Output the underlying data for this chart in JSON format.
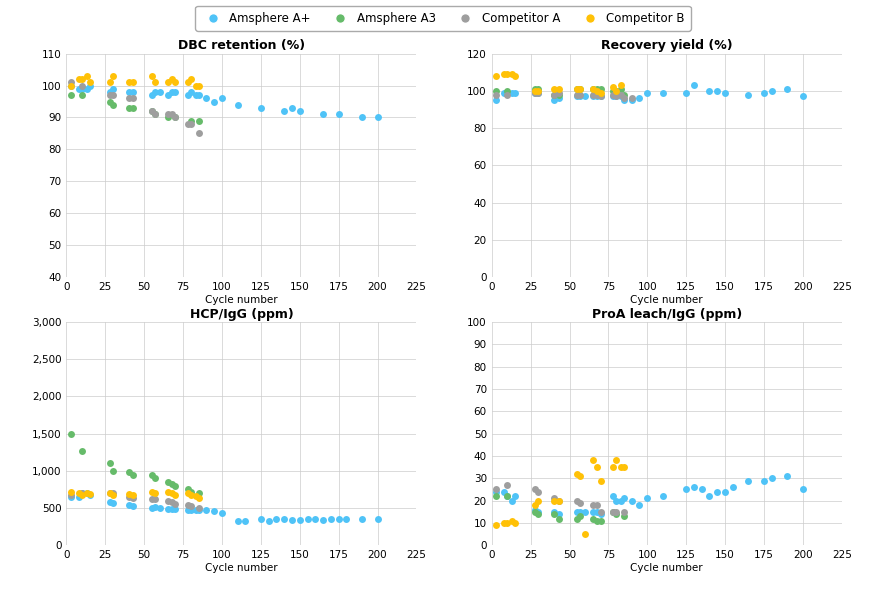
{
  "colors": {
    "amsphere_aplus": "#4FC3F7",
    "amsphere_a3": "#66BB6A",
    "competitor_a": "#9E9E9E",
    "competitor_b": "#FFC107"
  },
  "legend_labels": [
    "Amsphere A+",
    "Amsphere A3",
    "Competitor A",
    "Competitor B"
  ],
  "dbc": {
    "title": "DBC retention (%)",
    "ylim": [
      40,
      110
    ],
    "yticks": [
      40,
      50,
      60,
      70,
      80,
      90,
      100,
      110
    ],
    "xlim": [
      0,
      225
    ],
    "xticks": [
      0,
      25,
      50,
      75,
      100,
      125,
      150,
      175,
      200,
      225
    ],
    "amsphere_aplus": [
      [
        3,
        100
      ],
      [
        8,
        99
      ],
      [
        10,
        99
      ],
      [
        13,
        99
      ],
      [
        15,
        100
      ],
      [
        28,
        98
      ],
      [
        30,
        99
      ],
      [
        40,
        98
      ],
      [
        43,
        98
      ],
      [
        55,
        97
      ],
      [
        57,
        98
      ],
      [
        60,
        98
      ],
      [
        65,
        97
      ],
      [
        68,
        98
      ],
      [
        70,
        98
      ],
      [
        78,
        97
      ],
      [
        80,
        98
      ],
      [
        83,
        97
      ],
      [
        85,
        97
      ],
      [
        90,
        96
      ],
      [
        95,
        95
      ],
      [
        100,
        96
      ],
      [
        110,
        94
      ],
      [
        125,
        93
      ],
      [
        140,
        92
      ],
      [
        145,
        93
      ],
      [
        150,
        92
      ],
      [
        165,
        91
      ],
      [
        175,
        91
      ],
      [
        190,
        90
      ],
      [
        200,
        90
      ]
    ],
    "amsphere_a3": [
      [
        3,
        97
      ],
      [
        10,
        97
      ],
      [
        28,
        95
      ],
      [
        30,
        94
      ],
      [
        40,
        93
      ],
      [
        43,
        93
      ],
      [
        55,
        92
      ],
      [
        57,
        91
      ],
      [
        65,
        90
      ],
      [
        70,
        90
      ],
      [
        80,
        89
      ],
      [
        85,
        89
      ]
    ],
    "competitor_a": [
      [
        3,
        101
      ],
      [
        10,
        100
      ],
      [
        28,
        97
      ],
      [
        30,
        97
      ],
      [
        40,
        96
      ],
      [
        43,
        96
      ],
      [
        55,
        92
      ],
      [
        57,
        91
      ],
      [
        65,
        91
      ],
      [
        68,
        91
      ],
      [
        70,
        90
      ],
      [
        78,
        88
      ],
      [
        80,
        88
      ],
      [
        85,
        85
      ]
    ],
    "competitor_b": [
      [
        3,
        100
      ],
      [
        8,
        102
      ],
      [
        10,
        102
      ],
      [
        13,
        103
      ],
      [
        15,
        101
      ],
      [
        28,
        101
      ],
      [
        30,
        103
      ],
      [
        40,
        101
      ],
      [
        43,
        101
      ],
      [
        55,
        103
      ],
      [
        57,
        101
      ],
      [
        65,
        101
      ],
      [
        68,
        102
      ],
      [
        70,
        101
      ],
      [
        78,
        101
      ],
      [
        80,
        102
      ],
      [
        83,
        100
      ],
      [
        85,
        100
      ]
    ]
  },
  "recovery": {
    "title": "Recovery yield (%)",
    "ylim": [
      0,
      120
    ],
    "yticks": [
      0,
      20,
      40,
      60,
      80,
      100,
      120
    ],
    "xlim": [
      0,
      225
    ],
    "xticks": [
      0,
      25,
      50,
      75,
      100,
      125,
      150,
      175,
      200,
      225
    ],
    "amsphere_aplus": [
      [
        3,
        95
      ],
      [
        8,
        99
      ],
      [
        10,
        99
      ],
      [
        13,
        99
      ],
      [
        15,
        99
      ],
      [
        28,
        99
      ],
      [
        30,
        99
      ],
      [
        40,
        95
      ],
      [
        43,
        96
      ],
      [
        55,
        97
      ],
      [
        57,
        97
      ],
      [
        60,
        97
      ],
      [
        65,
        97
      ],
      [
        68,
        97
      ],
      [
        70,
        97
      ],
      [
        78,
        97
      ],
      [
        80,
        97
      ],
      [
        83,
        97
      ],
      [
        85,
        95
      ],
      [
        90,
        95
      ],
      [
        95,
        96
      ],
      [
        100,
        99
      ],
      [
        110,
        99
      ],
      [
        125,
        99
      ],
      [
        130,
        103
      ],
      [
        140,
        100
      ],
      [
        145,
        100
      ],
      [
        150,
        99
      ],
      [
        165,
        98
      ],
      [
        175,
        99
      ],
      [
        180,
        100
      ],
      [
        190,
        101
      ],
      [
        200,
        97
      ]
    ],
    "amsphere_a3": [
      [
        3,
        100
      ],
      [
        10,
        100
      ],
      [
        28,
        101
      ],
      [
        30,
        101
      ],
      [
        40,
        98
      ],
      [
        43,
        98
      ],
      [
        55,
        101
      ],
      [
        57,
        101
      ],
      [
        65,
        101
      ],
      [
        68,
        101
      ],
      [
        70,
        101
      ],
      [
        78,
        100
      ],
      [
        80,
        100
      ],
      [
        83,
        101
      ],
      [
        85,
        98
      ]
    ],
    "competitor_a": [
      [
        3,
        98
      ],
      [
        10,
        98
      ],
      [
        28,
        99
      ],
      [
        30,
        99
      ],
      [
        40,
        98
      ],
      [
        43,
        99
      ],
      [
        55,
        98
      ],
      [
        57,
        98
      ],
      [
        65,
        98
      ],
      [
        68,
        98
      ],
      [
        70,
        97
      ],
      [
        78,
        98
      ],
      [
        80,
        97
      ],
      [
        83,
        98
      ],
      [
        85,
        96
      ],
      [
        90,
        96
      ]
    ],
    "competitor_b": [
      [
        3,
        108
      ],
      [
        8,
        109
      ],
      [
        10,
        109
      ],
      [
        13,
        109
      ],
      [
        15,
        108
      ],
      [
        28,
        100
      ],
      [
        30,
        100
      ],
      [
        40,
        101
      ],
      [
        43,
        101
      ],
      [
        55,
        101
      ],
      [
        57,
        101
      ],
      [
        65,
        101
      ],
      [
        68,
        100
      ],
      [
        70,
        99
      ],
      [
        78,
        102
      ],
      [
        80,
        100
      ],
      [
        83,
        103
      ]
    ]
  },
  "hcp": {
    "title": "HCP/IgG (ppm)",
    "ylim": [
      0,
      3000
    ],
    "yticks": [
      0,
      500,
      1000,
      1500,
      2000,
      2500,
      3000
    ],
    "ytick_labels": [
      "0",
      "500",
      "1,000",
      "1,500",
      "2,000",
      "2,500",
      "3,000"
    ],
    "xlim": [
      0,
      225
    ],
    "xticks": [
      0,
      25,
      50,
      75,
      100,
      125,
      150,
      175,
      200,
      225
    ],
    "amsphere_aplus": [
      [
        3,
        650
      ],
      [
        8,
        650
      ],
      [
        10,
        700
      ],
      [
        13,
        700
      ],
      [
        15,
        680
      ],
      [
        28,
        580
      ],
      [
        30,
        570
      ],
      [
        40,
        540
      ],
      [
        43,
        530
      ],
      [
        55,
        500
      ],
      [
        57,
        510
      ],
      [
        60,
        505
      ],
      [
        65,
        490
      ],
      [
        68,
        490
      ],
      [
        70,
        490
      ],
      [
        78,
        480
      ],
      [
        80,
        480
      ],
      [
        83,
        470
      ],
      [
        85,
        475
      ],
      [
        90,
        470
      ],
      [
        95,
        465
      ],
      [
        100,
        430
      ],
      [
        110,
        330
      ],
      [
        115,
        330
      ],
      [
        125,
        350
      ],
      [
        130,
        330
      ],
      [
        135,
        350
      ],
      [
        140,
        350
      ],
      [
        145,
        340
      ],
      [
        150,
        340
      ],
      [
        155,
        350
      ],
      [
        160,
        350
      ],
      [
        165,
        340
      ],
      [
        170,
        350
      ],
      [
        175,
        350
      ],
      [
        180,
        350
      ],
      [
        190,
        350
      ],
      [
        200,
        350
      ]
    ],
    "amsphere_a3": [
      [
        3,
        1500
      ],
      [
        10,
        1260
      ],
      [
        28,
        1100
      ],
      [
        30,
        1000
      ],
      [
        40,
        980
      ],
      [
        43,
        950
      ],
      [
        55,
        950
      ],
      [
        57,
        900
      ],
      [
        65,
        850
      ],
      [
        68,
        820
      ],
      [
        70,
        800
      ],
      [
        78,
        750
      ],
      [
        80,
        720
      ],
      [
        85,
        700
      ]
    ],
    "competitor_a": [
      [
        3,
        680
      ],
      [
        10,
        700
      ],
      [
        28,
        700
      ],
      [
        30,
        700
      ],
      [
        40,
        650
      ],
      [
        43,
        640
      ],
      [
        55,
        620
      ],
      [
        57,
        620
      ],
      [
        65,
        600
      ],
      [
        68,
        580
      ],
      [
        70,
        560
      ],
      [
        78,
        540
      ],
      [
        80,
        530
      ],
      [
        85,
        500
      ]
    ],
    "competitor_b": [
      [
        3,
        720
      ],
      [
        8,
        700
      ],
      [
        10,
        680
      ],
      [
        13,
        700
      ],
      [
        15,
        690
      ],
      [
        28,
        700
      ],
      [
        30,
        680
      ],
      [
        40,
        690
      ],
      [
        43,
        680
      ],
      [
        55,
        720
      ],
      [
        57,
        700
      ],
      [
        65,
        710
      ],
      [
        68,
        700
      ],
      [
        70,
        680
      ],
      [
        78,
        700
      ],
      [
        80,
        680
      ],
      [
        83,
        660
      ],
      [
        85,
        640
      ]
    ]
  },
  "proa": {
    "title": "ProA leach/IgG (ppm)",
    "ylim": [
      0,
      100
    ],
    "yticks": [
      0,
      10,
      20,
      30,
      40,
      50,
      60,
      70,
      80,
      90,
      100
    ],
    "xlim": [
      0,
      225
    ],
    "xticks": [
      0,
      25,
      50,
      75,
      100,
      125,
      150,
      175,
      200,
      225
    ],
    "amsphere_aplus": [
      [
        3,
        24
      ],
      [
        8,
        24
      ],
      [
        10,
        22
      ],
      [
        13,
        20
      ],
      [
        15,
        22
      ],
      [
        28,
        16
      ],
      [
        30,
        15
      ],
      [
        40,
        15
      ],
      [
        43,
        14
      ],
      [
        55,
        15
      ],
      [
        57,
        15
      ],
      [
        60,
        15
      ],
      [
        65,
        15
      ],
      [
        68,
        15
      ],
      [
        70,
        14
      ],
      [
        78,
        22
      ],
      [
        80,
        20
      ],
      [
        83,
        20
      ],
      [
        85,
        21
      ],
      [
        90,
        20
      ],
      [
        95,
        18
      ],
      [
        100,
        21
      ],
      [
        110,
        22
      ],
      [
        125,
        25
      ],
      [
        130,
        26
      ],
      [
        135,
        25
      ],
      [
        140,
        22
      ],
      [
        145,
        24
      ],
      [
        150,
        24
      ],
      [
        155,
        26
      ],
      [
        165,
        29
      ],
      [
        175,
        29
      ],
      [
        180,
        30
      ],
      [
        190,
        31
      ],
      [
        200,
        25
      ]
    ],
    "amsphere_a3": [
      [
        3,
        22
      ],
      [
        10,
        22
      ],
      [
        28,
        15
      ],
      [
        30,
        14
      ],
      [
        40,
        14
      ],
      [
        43,
        12
      ],
      [
        55,
        12
      ],
      [
        57,
        13
      ],
      [
        65,
        12
      ],
      [
        68,
        11
      ],
      [
        70,
        11
      ],
      [
        78,
        15
      ],
      [
        80,
        14
      ],
      [
        85,
        13
      ]
    ],
    "competitor_a": [
      [
        3,
        25
      ],
      [
        10,
        27
      ],
      [
        28,
        25
      ],
      [
        30,
        24
      ],
      [
        40,
        21
      ],
      [
        43,
        20
      ],
      [
        55,
        20
      ],
      [
        57,
        19
      ],
      [
        65,
        18
      ],
      [
        68,
        18
      ],
      [
        70,
        15
      ],
      [
        78,
        15
      ],
      [
        80,
        15
      ],
      [
        85,
        15
      ]
    ],
    "competitor_b": [
      [
        3,
        9
      ],
      [
        8,
        10
      ],
      [
        10,
        10
      ],
      [
        13,
        11
      ],
      [
        15,
        10
      ],
      [
        28,
        18
      ],
      [
        30,
        20
      ],
      [
        40,
        20
      ],
      [
        43,
        20
      ],
      [
        55,
        32
      ],
      [
        57,
        31
      ],
      [
        60,
        5
      ],
      [
        65,
        38
      ],
      [
        68,
        35
      ],
      [
        70,
        29
      ],
      [
        78,
        35
      ],
      [
        80,
        38
      ],
      [
        83,
        35
      ],
      [
        85,
        35
      ]
    ]
  },
  "figsize": [
    8.86,
    5.96
  ],
  "dpi": 100,
  "marker_size": 25,
  "title_fontsize": 9,
  "tick_fontsize": 7.5,
  "xlabel_fontsize": 7.5,
  "legend_fontsize": 8.5
}
